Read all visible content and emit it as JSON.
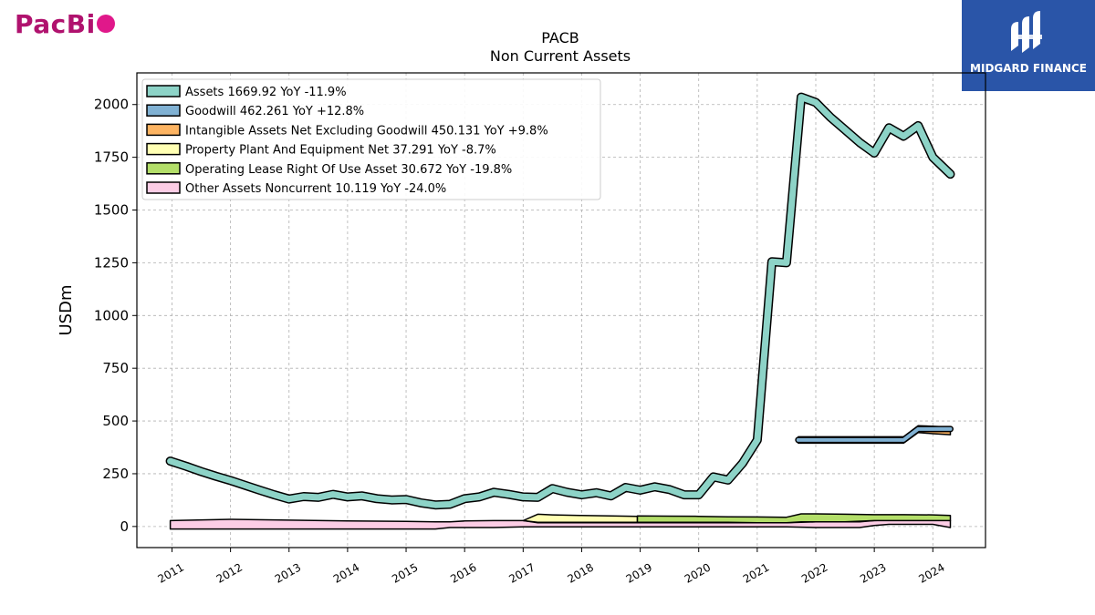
{
  "branding": {
    "left_logo_text": "PacBi",
    "right_logo_text": "MIDGARD FINANCE"
  },
  "colors": {
    "assets": "#8dd3c7",
    "goodwill": "#80b1d3",
    "intangibles": "#fdb462",
    "ppe": "#ffffb3",
    "oplease": "#b3de69",
    "other": "#fccde5",
    "logo_left": "#b0126e",
    "logo_right_bg": "#2a55a8"
  },
  "chart_data": {
    "type": "line",
    "title": "PACB",
    "subtitle": "Non Current  Assets",
    "ylabel": "USDm",
    "xlim": [
      2010.4,
      2024.9
    ],
    "ylim": [
      -100,
      2150
    ],
    "yticks": [
      0,
      250,
      500,
      750,
      1000,
      1250,
      1500,
      1750,
      2000
    ],
    "xticks": [
      "2011",
      "2012",
      "2013",
      "2014",
      "2015",
      "2016",
      "2017",
      "2018",
      "2019",
      "2020",
      "2021",
      "2022",
      "2023",
      "2024"
    ],
    "grid": true,
    "legend_position": "top-left",
    "legend": [
      "Assets  1669.92 YoY -11.9%",
      "Goodwill  462.261 YoY +12.8%",
      "Intangible Assets Net Excluding Goodwill  450.131 YoY +9.8%",
      "Property Plant And Equipment Net  37.291 YoY -8.7%",
      "Operating Lease Right Of Use Asset  30.672 YoY -19.8%",
      "Other Assets Noncurrent  10.119 YoY -24.0%"
    ],
    "series": [
      {
        "name": "Assets",
        "key": "assets",
        "style": "line",
        "x": [
          2010.97,
          2011.25,
          2011.5,
          2011.75,
          2012.0,
          2012.25,
          2012.5,
          2012.75,
          2013.0,
          2013.25,
          2013.5,
          2013.75,
          2014.0,
          2014.25,
          2014.5,
          2014.75,
          2015.0,
          2015.25,
          2015.5,
          2015.75,
          2016.0,
          2016.25,
          2016.5,
          2016.75,
          2017.0,
          2017.25,
          2017.5,
          2017.75,
          2018.0,
          2018.25,
          2018.5,
          2018.75,
          2019.0,
          2019.25,
          2019.5,
          2019.75,
          2020.0,
          2020.25,
          2020.5,
          2020.75,
          2021.0,
          2021.25,
          2021.5,
          2021.75,
          2022.0,
          2022.25,
          2022.5,
          2022.75,
          2023.0,
          2023.25,
          2023.5,
          2023.75,
          2024.0,
          2024.3
        ],
        "y": [
          310,
          285,
          260,
          238,
          218,
          195,
          172,
          150,
          130,
          142,
          138,
          152,
          140,
          145,
          132,
          126,
          128,
          112,
          102,
          105,
          132,
          140,
          162,
          152,
          140,
          138,
          180,
          162,
          150,
          160,
          145,
          185,
          172,
          188,
          175,
          150,
          150,
          235,
          220,
          300,
          410,
          1255,
          1250,
          2035,
          2010,
          1940,
          1880,
          1820,
          1770,
          1890,
          1850,
          1900,
          1750,
          1670
        ]
      },
      {
        "name": "Goodwill",
        "key": "goodwill",
        "style": "line",
        "x": [
          2021.7,
          2022.0,
          2022.5,
          2023.0,
          2023.5,
          2023.75,
          2024.0,
          2024.3
        ],
        "y": [
          410,
          410,
          410,
          410,
          410,
          462,
          462,
          462
        ]
      },
      {
        "name": "Intangible Assets Net Excluding Goodwill",
        "key": "intangibles",
        "style": "band",
        "x": [
          2021.7,
          2022.0,
          2022.5,
          2023.0,
          2023.5,
          2023.75,
          2024.0,
          2024.3
        ],
        "lower": [
          395,
          395,
          395,
          395,
          395,
          445,
          440,
          435
        ],
        "upper": [
          425,
          425,
          425,
          425,
          425,
          478,
          475,
          470
        ]
      },
      {
        "name": "Property Plant And Equipment Net",
        "key": "ppe",
        "style": "band",
        "x": [
          2017.0,
          2017.25,
          2017.5,
          2018.0,
          2018.5,
          2018.95
        ],
        "lower": [
          28,
          20,
          20,
          20,
          20,
          20
        ],
        "upper": [
          28,
          58,
          55,
          52,
          50,
          48
        ]
      },
      {
        "name": "Operating Lease Right Of Use Asset",
        "key": "oplease",
        "style": "band",
        "x": [
          2018.95,
          2019.5,
          2020.0,
          2020.5,
          2021.0,
          2021.5,
          2021.75,
          2022.0,
          2022.5,
          2023.0,
          2023.5,
          2024.0,
          2024.3
        ],
        "lower": [
          20,
          20,
          20,
          20,
          18,
          18,
          22,
          22,
          22,
          28,
          28,
          28,
          28
        ],
        "upper": [
          50,
          49,
          48,
          46,
          45,
          44,
          60,
          60,
          58,
          56,
          56,
          55,
          52
        ]
      },
      {
        "name": "Other Assets Noncurrent",
        "key": "other",
        "style": "band",
        "x": [
          2010.97,
          2012.0,
          2013.0,
          2014.0,
          2015.0,
          2015.5,
          2015.75,
          2016.0,
          2016.5,
          2017.0,
          2017.25,
          2018.0,
          2019.0,
          2020.0,
          2021.0,
          2021.5,
          2022.0,
          2022.75,
          2023.0,
          2023.25,
          2024.0,
          2024.3
        ],
        "lower": [
          -12,
          -12,
          -12,
          -12,
          -12,
          -12,
          -5,
          -5,
          -5,
          -2,
          -2,
          -2,
          -2,
          -2,
          -2,
          -2,
          -5,
          -5,
          5,
          10,
          10,
          -5
        ],
        "upper": [
          28,
          34,
          30,
          26,
          24,
          22,
          22,
          26,
          28,
          28,
          18,
          18,
          18,
          18,
          18,
          18,
          22,
          22,
          28,
          30,
          32,
          28
        ]
      }
    ]
  }
}
